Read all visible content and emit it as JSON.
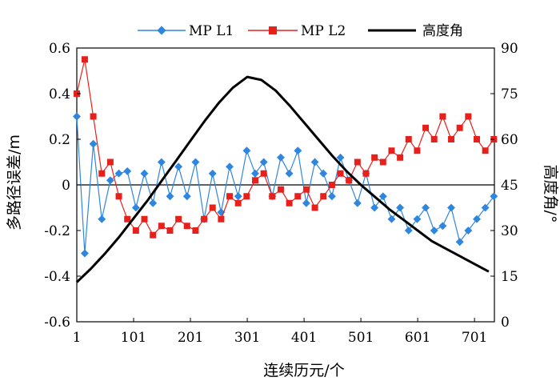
{
  "chart_data": {
    "type": "line",
    "xlabel": "连续历元/个",
    "ylabel": "多路径误差/m",
    "y2label": "高度角/°",
    "x_ticks": [
      1,
      101,
      201,
      301,
      401,
      501,
      601,
      701
    ],
    "y_ticks": [
      -0.6,
      -0.4,
      -0.2,
      0,
      0.2,
      0.4,
      0.6
    ],
    "y2_ticks": [
      0,
      15,
      30,
      45,
      60,
      75,
      90
    ],
    "xlim": [
      1,
      736
    ],
    "ylim": [
      -0.6,
      0.6
    ],
    "y2lim": [
      0,
      90
    ],
    "grid": false,
    "legend_position": "top",
    "series": [
      {
        "name": "MP L1",
        "axis": "left",
        "color": "#2E86DE",
        "marker": "diamond",
        "x": [
          1,
          15,
          30,
          45,
          60,
          75,
          90,
          105,
          120,
          135,
          150,
          165,
          180,
          195,
          210,
          225,
          240,
          255,
          270,
          285,
          300,
          315,
          330,
          345,
          360,
          375,
          390,
          405,
          420,
          435,
          450,
          465,
          480,
          495,
          510,
          525,
          540,
          555,
          570,
          585,
          600,
          615,
          630,
          645,
          660,
          675,
          690,
          705,
          720,
          735
        ],
        "values": [
          0.3,
          -0.3,
          0.18,
          -0.15,
          0.02,
          0.05,
          0.06,
          -0.1,
          0.05,
          -0.08,
          0.1,
          -0.05,
          0.08,
          -0.05,
          0.1,
          -0.15,
          0.05,
          -0.12,
          0.08,
          -0.05,
          0.15,
          0.05,
          0.1,
          -0.05,
          0.12,
          0.05,
          0.15,
          -0.08,
          0.1,
          0.05,
          -0.05,
          0.12,
          0.02,
          -0.08,
          0.05,
          -0.1,
          -0.05,
          -0.15,
          -0.1,
          -0.2,
          -0.15,
          -0.1,
          -0.2,
          -0.18,
          -0.1,
          -0.25,
          -0.2,
          -0.15,
          -0.1,
          -0.05
        ]
      },
      {
        "name": "MP L2",
        "axis": "left",
        "color": "#E8201C",
        "marker": "square",
        "x": [
          1,
          15,
          30,
          45,
          60,
          75,
          90,
          105,
          120,
          135,
          150,
          165,
          180,
          195,
          210,
          225,
          240,
          255,
          270,
          285,
          300,
          315,
          330,
          345,
          360,
          375,
          390,
          405,
          420,
          435,
          450,
          465,
          480,
          495,
          510,
          525,
          540,
          555,
          570,
          585,
          600,
          615,
          630,
          645,
          660,
          675,
          690,
          705,
          720,
          735
        ],
        "values": [
          0.4,
          0.55,
          0.3,
          0.05,
          0.1,
          -0.05,
          -0.15,
          -0.2,
          -0.15,
          -0.22,
          -0.18,
          -0.2,
          -0.15,
          -0.18,
          -0.2,
          -0.15,
          -0.1,
          -0.15,
          -0.05,
          -0.08,
          -0.05,
          0.02,
          0.05,
          -0.05,
          -0.02,
          -0.08,
          -0.05,
          -0.02,
          -0.1,
          -0.05,
          0.0,
          0.05,
          0.02,
          0.1,
          0.05,
          0.12,
          0.1,
          0.15,
          0.12,
          0.2,
          0.15,
          0.25,
          0.2,
          0.3,
          0.2,
          0.25,
          0.3,
          0.2,
          0.15,
          0.2
        ]
      },
      {
        "name": "高度角",
        "axis": "right",
        "color": "#000000",
        "marker": "none",
        "x": [
          1,
          26,
          51,
          76,
          101,
          126,
          151,
          176,
          201,
          226,
          251,
          276,
          301,
          326,
          351,
          376,
          401,
          426,
          451,
          476,
          501,
          526,
          551,
          576,
          601,
          626,
          651,
          676,
          701,
          726
        ],
        "values": [
          13,
          17.5,
          22.5,
          28,
          34,
          40,
          46.5,
          53,
          59.5,
          66,
          72,
          77,
          80.5,
          79.5,
          76,
          71,
          65.5,
          60,
          54.5,
          49.5,
          45,
          41,
          37,
          33.5,
          30,
          26.5,
          24,
          21.5,
          19,
          16.5
        ]
      }
    ]
  }
}
